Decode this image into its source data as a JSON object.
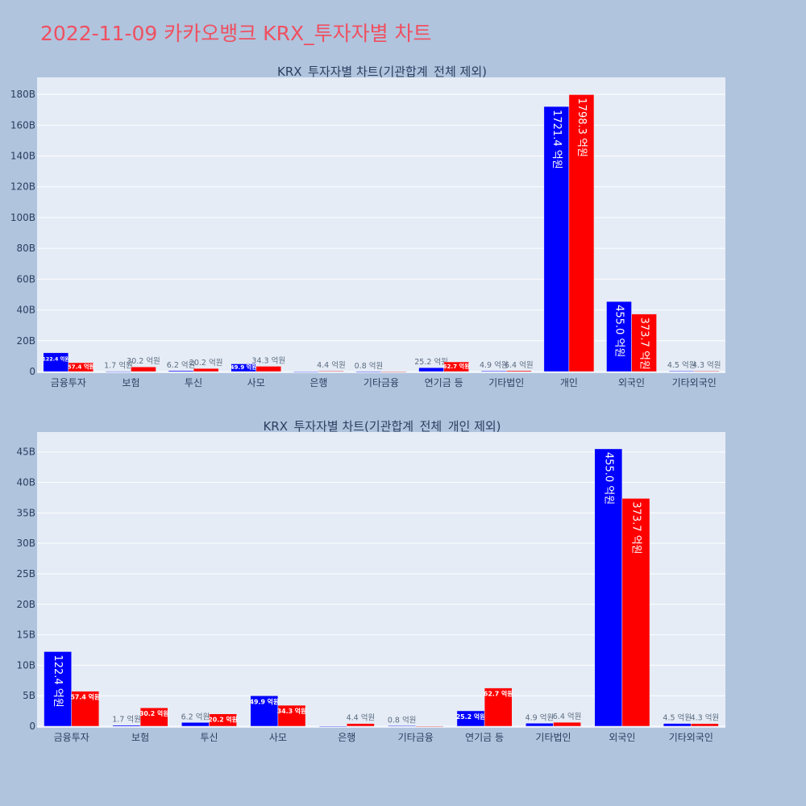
{
  "page": {
    "title": "2022-11-09 카카오뱅크 KRX_투자자별 차트"
  },
  "colors": {
    "series1": "#0000ff",
    "series2": "#ff0000",
    "title": "#ef5060"
  },
  "chart_data": [
    {
      "type": "bar",
      "title": "KRX_투자자별 차트(기관합계_전체 제외)",
      "categories": [
        "금융투자",
        "보험",
        "투신",
        "사모",
        "은행",
        "기타금융",
        "연기금 등",
        "기타법인",
        "개인",
        "외국인",
        "기타외국인"
      ],
      "series": [
        {
          "name": "series-1",
          "color": "#0000ff",
          "values": [
            12.24,
            0.17,
            0.62,
            4.99,
            0,
            0.08,
            2.52,
            0.49,
            172.14,
            45.5,
            0.45
          ],
          "labels": [
            "122.4 억원",
            "1.7 억원",
            "6.2 억원",
            "49.9 억원",
            "",
            "0.8 억원",
            "25.2 억원",
            "4.9 억원",
            "1721.4 억원",
            "455.0 억원",
            "4.5 억원"
          ]
        },
        {
          "name": "series-2",
          "color": "#ff0000",
          "values": [
            5.74,
            3.02,
            2.02,
            3.43,
            0.44,
            0,
            6.27,
            0.64,
            179.83,
            37.37,
            0.43
          ],
          "labels": [
            "57.4 억원",
            "30.2 억원",
            "20.2 억원",
            "34.3 억원",
            "4.4 억원",
            "",
            "62.7 억원",
            "6.4 억원",
            "1798.3 억원",
            "373.7 억원",
            "4.3 억원"
          ]
        }
      ],
      "ylim": [
        0,
        190
      ],
      "yticks": [
        0,
        20,
        40,
        60,
        80,
        100,
        120,
        140,
        160,
        180
      ],
      "ytick_labels": [
        "0",
        "20B",
        "40B",
        "60B",
        "80B",
        "100B",
        "120B",
        "140B",
        "160B",
        "180B"
      ],
      "xlabel": "",
      "ylabel": ""
    },
    {
      "type": "bar",
      "title": "KRX_투자자별 차트(기관합계_전체_개인 제외)",
      "categories": [
        "금융투자",
        "보험",
        "투신",
        "사모",
        "은행",
        "기타금융",
        "연기금 등",
        "기타법인",
        "외국인",
        "기타외국인"
      ],
      "series": [
        {
          "name": "series-1",
          "color": "#0000ff",
          "values": [
            12.24,
            0.17,
            0.62,
            4.99,
            0,
            0.08,
            2.52,
            0.49,
            45.5,
            0.45
          ],
          "labels": [
            "122.4 억원",
            "1.7 억원",
            "6.2 억원",
            "49.9 억원",
            "",
            "0.8 억원",
            "25.2 억원",
            "4.9 억원",
            "455.0 억원",
            "4.5 억원"
          ]
        },
        {
          "name": "series-2",
          "color": "#ff0000",
          "values": [
            5.74,
            3.02,
            2.02,
            3.43,
            0.44,
            0,
            6.27,
            0.64,
            37.37,
            0.43
          ],
          "labels": [
            "57.4 억원",
            "30.2 억원",
            "20.2 억원",
            "34.3 억원",
            "4.4 억원",
            "",
            "62.7 억원",
            "6.4 억원",
            "373.7 억원",
            "4.3 억원"
          ]
        }
      ],
      "ylim": [
        0,
        48
      ],
      "yticks": [
        0,
        5,
        10,
        15,
        20,
        25,
        30,
        35,
        40,
        45
      ],
      "ytick_labels": [
        "0",
        "5B",
        "10B",
        "15B",
        "20B",
        "25B",
        "30B",
        "35B",
        "40B",
        "45B"
      ],
      "xlabel": "",
      "ylabel": ""
    }
  ]
}
